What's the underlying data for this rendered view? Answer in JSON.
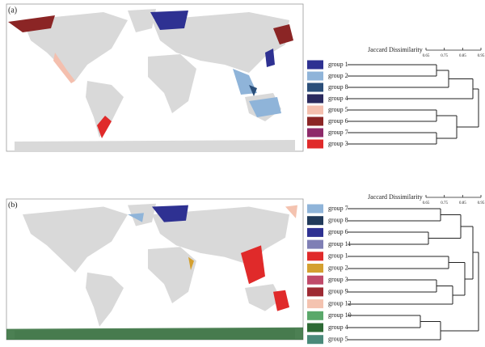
{
  "panels": [
    {
      "label": "(a)",
      "dendrogram": {
        "axis_title": "Jaccard Dissimilarity",
        "ticks": [
          "0.65",
          "0.75",
          "0.85",
          "0.95"
        ]
      },
      "groups": [
        {
          "label": "group 1",
          "color": "#2e3192"
        },
        {
          "label": "group 2",
          "color": "#8fb4d9"
        },
        {
          "label": "group 8",
          "color": "#2b4f7a"
        },
        {
          "label": "group 4",
          "color": "#2a2a5e"
        },
        {
          "label": "group 5",
          "color": "#f4bfae"
        },
        {
          "label": "group 6",
          "color": "#8b2525"
        },
        {
          "label": "group 7",
          "color": "#8e2a6a"
        },
        {
          "label": "group 3",
          "color": "#e02a2a"
        }
      ]
    },
    {
      "label": "(b)",
      "dendrogram": {
        "axis_title": "Jaccard Dissimilarity",
        "ticks": [
          "0.65",
          "0.75",
          "0.85",
          "0.95"
        ]
      },
      "groups": [
        {
          "label": "group 7",
          "color": "#8fb4d9"
        },
        {
          "label": "group 8",
          "color": "#213a5a"
        },
        {
          "label": "group 6",
          "color": "#2e3192"
        },
        {
          "label": "group 11",
          "color": "#7f7fb5"
        },
        {
          "label": "group 1",
          "color": "#e02a2a"
        },
        {
          "label": "group 2",
          "color": "#d4a030"
        },
        {
          "label": "group 3",
          "color": "#c04a6a"
        },
        {
          "label": "group 9",
          "color": "#9e2a33"
        },
        {
          "label": "group 12",
          "color": "#f4c3b0"
        },
        {
          "label": "group 10",
          "color": "#5aa86a"
        },
        {
          "label": "group 4",
          "color": "#2d6a35"
        },
        {
          "label": "group 5",
          "color": "#4a8a7a"
        }
      ]
    }
  ]
}
